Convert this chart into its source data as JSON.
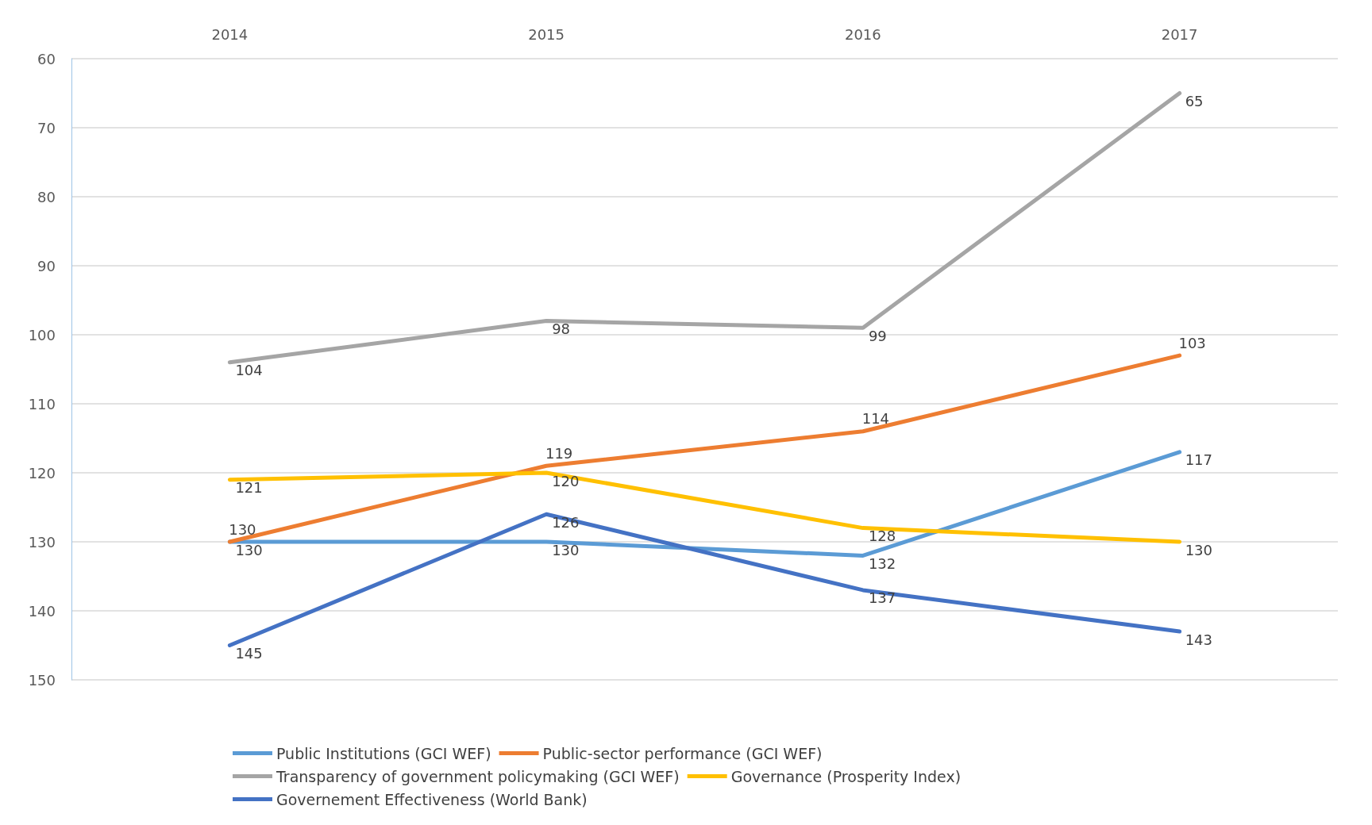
{
  "chart_data": {
    "type": "line",
    "categories": [
      "2014",
      "2015",
      "2016",
      "2017"
    ],
    "series": [
      {
        "name": "Public Institutions (GCI WEF)",
        "color": "#5b9bd5",
        "values": [
          130,
          130,
          132,
          117
        ]
      },
      {
        "name": "Public-sector performance (GCI WEF)",
        "color": "#ed7d31",
        "values": [
          130,
          119,
          114,
          103
        ]
      },
      {
        "name": "Transparency of government policymaking (GCI WEF)",
        "color": "#a5a5a5",
        "values": [
          104,
          98,
          99,
          65
        ]
      },
      {
        "name": "Governance (Prosperity Index)",
        "color": "#ffc000",
        "values": [
          121,
          120,
          128,
          130
        ]
      },
      {
        "name": "Governement Effectiveness (World Bank)",
        "color": "#4472c4",
        "values": [
          145,
          126,
          137,
          143
        ]
      }
    ],
    "ylim": [
      150,
      60
    ],
    "yticks": [
      60,
      70,
      80,
      90,
      100,
      110,
      120,
      130,
      140,
      150
    ],
    "grid": "y",
    "legend": "bottom",
    "data_labels": true,
    "marker": "none",
    "line_style": "solid"
  }
}
